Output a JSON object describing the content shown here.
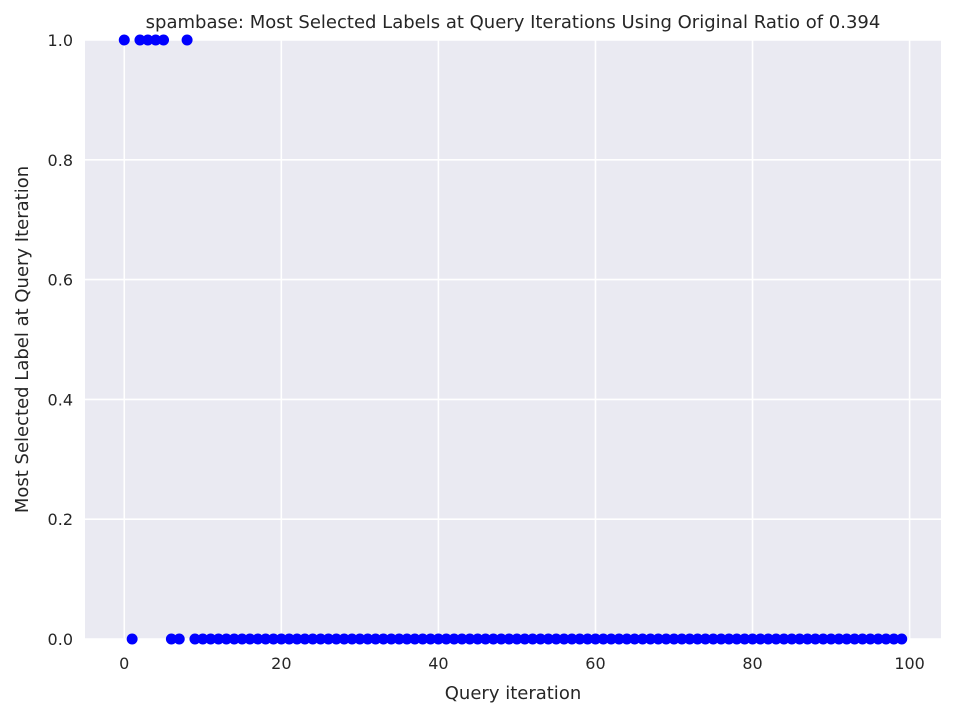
{
  "chart_data": {
    "type": "scatter",
    "title": "spambase: Most Selected Labels at Query Iterations Using Original Ratio of 0.394",
    "xlabel": "Query iteration",
    "ylabel": "Most Selected Label at Query Iteration",
    "xlim": [
      -5,
      104
    ],
    "ylim": [
      0.0,
      1.0
    ],
    "xticks": [
      0,
      20,
      40,
      60,
      80,
      100
    ],
    "yticks": [
      0.0,
      0.2,
      0.4,
      0.6,
      0.8,
      1.0
    ],
    "xtick_labels": [
      "0",
      "20",
      "40",
      "60",
      "80",
      "100"
    ],
    "ytick_labels": [
      "0.0",
      "0.2",
      "0.4",
      "0.6",
      "0.8",
      "1.0"
    ],
    "grid": true,
    "marker_color": "#0000ff",
    "background_color": "#eaeaf2",
    "grid_color": "#ffffff",
    "x": [
      0,
      1,
      2,
      3,
      4,
      5,
      6,
      7,
      8,
      9,
      10,
      11,
      12,
      13,
      14,
      15,
      16,
      17,
      18,
      19,
      20,
      21,
      22,
      23,
      24,
      25,
      26,
      27,
      28,
      29,
      30,
      31,
      32,
      33,
      34,
      35,
      36,
      37,
      38,
      39,
      40,
      41,
      42,
      43,
      44,
      45,
      46,
      47,
      48,
      49,
      50,
      51,
      52,
      53,
      54,
      55,
      56,
      57,
      58,
      59,
      60,
      61,
      62,
      63,
      64,
      65,
      66,
      67,
      68,
      69,
      70,
      71,
      72,
      73,
      74,
      75,
      76,
      77,
      78,
      79,
      80,
      81,
      82,
      83,
      84,
      85,
      86,
      87,
      88,
      89,
      90,
      91,
      92,
      93,
      94,
      95,
      96,
      97,
      98,
      99
    ],
    "y": [
      1,
      0,
      1,
      1,
      1,
      1,
      0,
      0,
      1,
      0,
      0,
      0,
      0,
      0,
      0,
      0,
      0,
      0,
      0,
      0,
      0,
      0,
      0,
      0,
      0,
      0,
      0,
      0,
      0,
      0,
      0,
      0,
      0,
      0,
      0,
      0,
      0,
      0,
      0,
      0,
      0,
      0,
      0,
      0,
      0,
      0,
      0,
      0,
      0,
      0,
      0,
      0,
      0,
      0,
      0,
      0,
      0,
      0,
      0,
      0,
      0,
      0,
      0,
      0,
      0,
      0,
      0,
      0,
      0,
      0,
      0,
      0,
      0,
      0,
      0,
      0,
      0,
      0,
      0,
      0,
      0,
      0,
      0,
      0,
      0,
      0,
      0,
      0,
      0,
      0,
      0,
      0,
      0,
      0,
      0,
      0,
      0,
      0,
      0,
      0
    ]
  }
}
